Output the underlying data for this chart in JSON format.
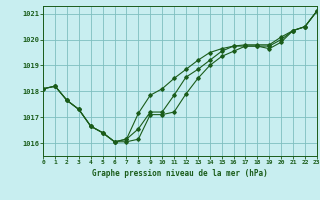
{
  "title": "Graphe pression niveau de la mer (hPa)",
  "background_color": "#c8eef0",
  "grid_color": "#7fbfbf",
  "line_color": "#1a5c1a",
  "marker_color": "#1a5c1a",
  "xlabel_color": "#1a5c1a",
  "ylabel_color": "#1a5c1a",
  "tick_color": "#1a5c1a",
  "xlim": [
    0,
    23
  ],
  "ylim": [
    1015.5,
    1021.3
  ],
  "yticks": [
    1016,
    1017,
    1018,
    1019,
    1020,
    1021
  ],
  "xticks": [
    0,
    1,
    2,
    3,
    4,
    5,
    6,
    7,
    8,
    9,
    10,
    11,
    12,
    13,
    14,
    15,
    16,
    17,
    18,
    19,
    20,
    21,
    22,
    23
  ],
  "hours": [
    0,
    1,
    2,
    3,
    4,
    5,
    6,
    7,
    8,
    9,
    10,
    11,
    12,
    13,
    14,
    15,
    16,
    17,
    18,
    19,
    20,
    21,
    22,
    23
  ],
  "series1": [
    1018.1,
    1018.2,
    1017.65,
    1017.3,
    1016.65,
    1016.4,
    1016.05,
    1016.05,
    1016.15,
    1017.1,
    1017.1,
    1017.2,
    1017.9,
    1018.5,
    1019.0,
    1019.35,
    1019.55,
    1019.75,
    1019.75,
    1019.65,
    1019.9,
    1020.35,
    1020.5,
    1021.1
  ],
  "series2": [
    1018.1,
    1018.2,
    1017.65,
    1017.3,
    1016.65,
    1016.4,
    1016.05,
    1016.15,
    1016.55,
    1017.2,
    1017.2,
    1017.85,
    1018.55,
    1018.85,
    1019.2,
    1019.55,
    1019.75,
    1019.75,
    1019.75,
    1019.75,
    1020.0,
    1020.35,
    1020.5,
    1021.1
  ],
  "series3": [
    1018.1,
    1018.2,
    1017.65,
    1017.3,
    1016.65,
    1016.4,
    1016.05,
    1016.15,
    1017.15,
    1017.85,
    1018.1,
    1018.5,
    1018.85,
    1019.2,
    1019.5,
    1019.65,
    1019.75,
    1019.8,
    1019.8,
    1019.8,
    1020.1,
    1020.35,
    1020.5,
    1021.1
  ]
}
